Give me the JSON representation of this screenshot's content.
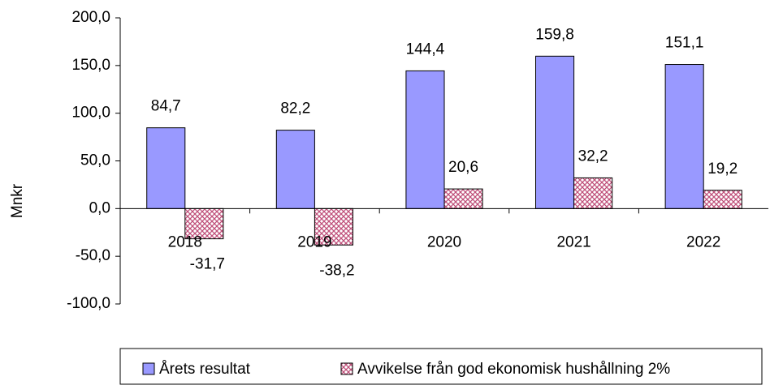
{
  "chart_data": {
    "type": "bar",
    "y_label": "Mnkr",
    "categories": [
      "2018",
      "2019",
      "2020",
      "2021",
      "2022"
    ],
    "series": [
      {
        "name": "Årets resultat",
        "color": "#9999ff",
        "values": [
          84.7,
          82.2,
          144.4,
          159.8,
          151.1
        ],
        "value_labels": [
          "84,7",
          "82,2",
          "144,4",
          "159,8",
          "151,1"
        ]
      },
      {
        "name": "Avvikelse från god ekonomisk hushållning 2%",
        "color": "#c0507a",
        "values": [
          -31.7,
          -38.2,
          20.6,
          32.2,
          19.2
        ],
        "value_labels": [
          "-31,7",
          "-38,2",
          "20,6",
          "32,2",
          "19,2"
        ]
      }
    ],
    "ylim": [
      -100,
      200
    ],
    "yticks": [
      {
        "value": -100,
        "label": "-100,0"
      },
      {
        "value": -50,
        "label": "-50,0"
      },
      {
        "value": 0,
        "label": "0,0"
      },
      {
        "value": 50,
        "label": "50,0"
      },
      {
        "value": 100,
        "label": "100,0"
      },
      {
        "value": 150,
        "label": "150,0"
      },
      {
        "value": 200,
        "label": "200,0"
      }
    ],
    "legend": "bottom"
  }
}
